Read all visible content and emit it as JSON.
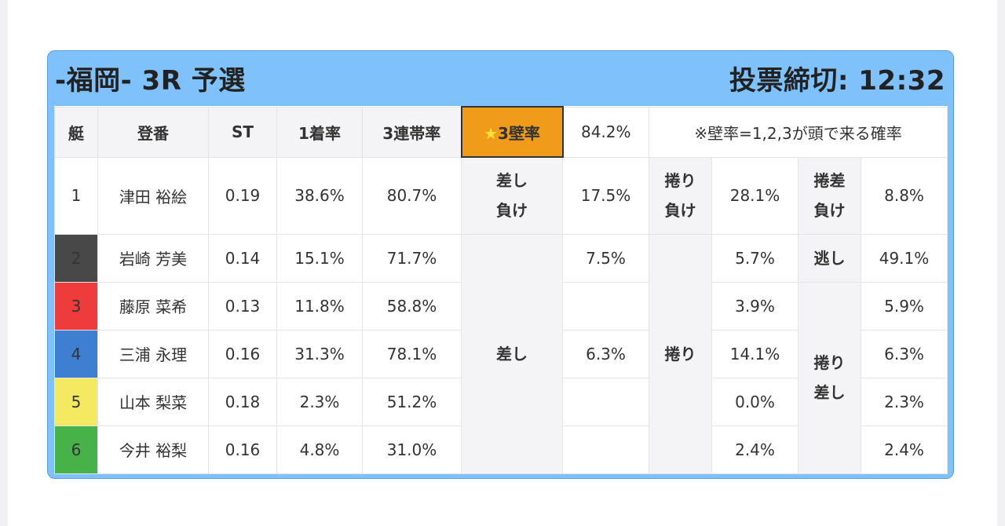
{
  "header": {
    "title": "-福岡- 3R 予選",
    "deadline": "投票締切: 12:32"
  },
  "columns": {
    "boat": "艇",
    "name": "登番",
    "st": "ST",
    "first_rate": "1着率",
    "top3_rate": "3連帯率"
  },
  "wall": {
    "star": "★",
    "label": "3壁率",
    "value": "84.2%",
    "note": "※壁率=1,2,3が頭で来る確率"
  },
  "rows": [
    {
      "no": "1",
      "name": "津田 裕絵",
      "st": "0.19",
      "first": "38.6%",
      "top3": "80.7%"
    },
    {
      "no": "2",
      "name": "岩崎 芳美",
      "st": "0.14",
      "first": "15.1%",
      "top3": "71.7%"
    },
    {
      "no": "3",
      "name": "藤原 菜希",
      "st": "0.13",
      "first": "11.8%",
      "top3": "58.8%"
    },
    {
      "no": "4",
      "name": "三浦 永理",
      "st": "0.16",
      "first": "31.3%",
      "top3": "78.1%"
    },
    {
      "no": "5",
      "name": "山本 梨菜",
      "st": "0.18",
      "first": "2.3%",
      "top3": "51.2%"
    },
    {
      "no": "6",
      "name": "今井 裕梨",
      "st": "0.16",
      "first": "4.8%",
      "top3": "31.0%"
    }
  ],
  "boat_colors": [
    "#ffffff",
    "#484848",
    "#ee3b3b",
    "#3f7fd1",
    "#f3ea62",
    "#46b248"
  ],
  "stats": {
    "sashi_make": {
      "l1": "差し",
      "l2": "負け",
      "value": "17.5%"
    },
    "makuri_make": {
      "l1": "捲り",
      "l2": "負け",
      "value": "28.1%"
    },
    "makurizashi_make": {
      "l1": "捲差",
      "l2": "負け",
      "value": "8.8%"
    },
    "nige": {
      "label": "逃し",
      "value": "49.1%"
    },
    "sashi": {
      "label": "差し",
      "v2": "7.5%",
      "v4": "6.3%"
    },
    "makuri": {
      "label": "捲り",
      "v2": "5.7%",
      "v3": "3.9%",
      "v4": "14.1%",
      "v5": "0.0%",
      "v6": "2.4%"
    },
    "makurizashi": {
      "l1": "捲り",
      "l2": "差し",
      "v3": "5.9%",
      "v4": "6.3%",
      "v5": "2.3%",
      "v6": "2.4%"
    }
  }
}
